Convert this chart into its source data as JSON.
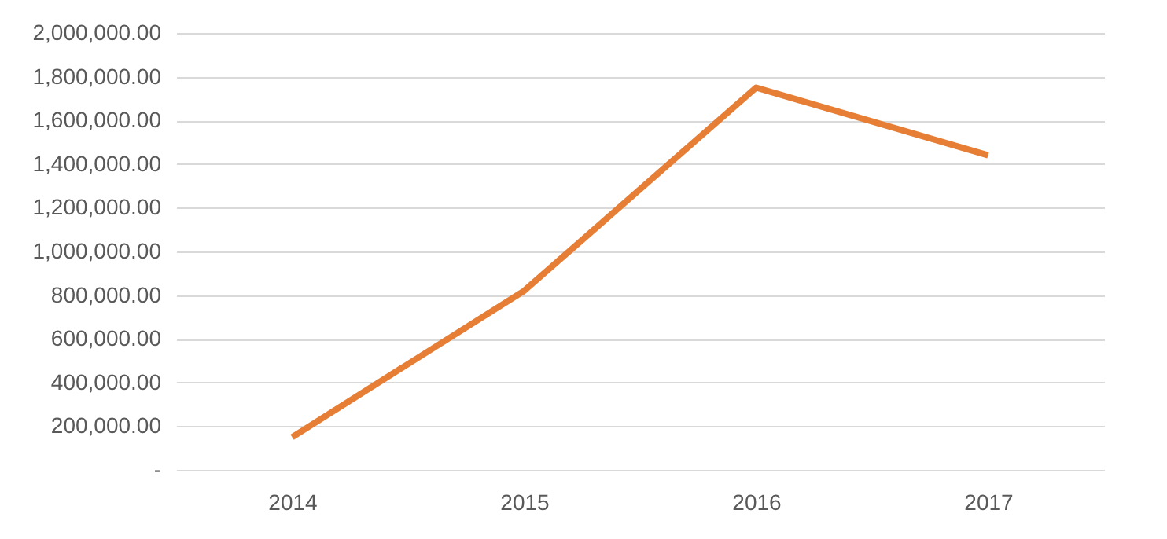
{
  "chart_data": {
    "type": "line",
    "categories": [
      "2014",
      "2015",
      "2016",
      "2017"
    ],
    "series": [
      {
        "color": "#e67e35",
        "values": [
          150000,
          820000,
          1750000,
          1440000
        ]
      }
    ],
    "ylim": [
      0,
      2000000
    ],
    "yticks": [
      {
        "value": 0,
        "label": "-"
      },
      {
        "value": 200000,
        "label": "200,000.00"
      },
      {
        "value": 400000,
        "label": "400,000.00"
      },
      {
        "value": 600000,
        "label": "600,000.00"
      },
      {
        "value": 800000,
        "label": "800,000.00"
      },
      {
        "value": 1000000,
        "label": "1,000,000.00"
      },
      {
        "value": 1200000,
        "label": "1,200,000.00"
      },
      {
        "value": 1400000,
        "label": "1,400,000.00"
      },
      {
        "value": 1600000,
        "label": "1,600,000.00"
      },
      {
        "value": 1800000,
        "label": "1,800,000.00"
      },
      {
        "value": 2000000,
        "label": "2,000,000.00"
      }
    ],
    "grid": "y",
    "marker": "none",
    "line_style": "solid"
  }
}
